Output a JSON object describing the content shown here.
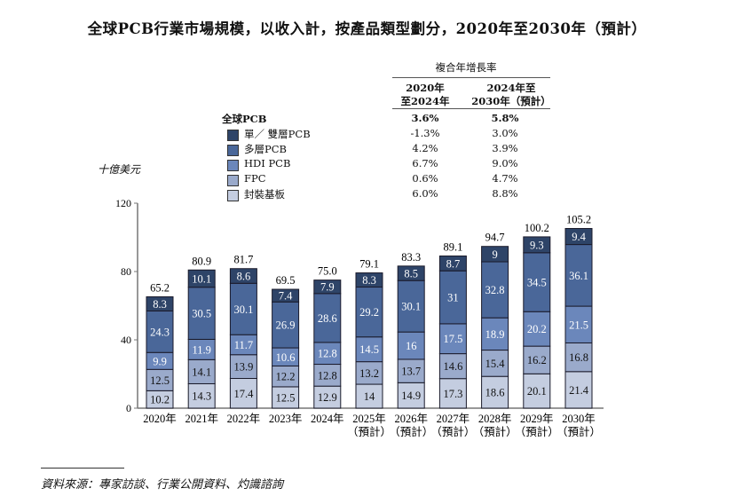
{
  "chart_data": {
    "type": "bar",
    "stacked": true,
    "title": "全球PCB行業市場規模，以收入計，按產品類型劃分，2020年至2030年（預計）",
    "ylabel": "十億美元",
    "xlabel": "",
    "ylim": [
      0,
      120
    ],
    "yticks": [
      0,
      40,
      80,
      120
    ],
    "grid": false,
    "categories": [
      "2020年",
      "2021年",
      "2022年",
      "2023年",
      "2024年",
      "2025年",
      "2026年",
      "2027年",
      "2028年",
      "2029年",
      "2030年"
    ],
    "category_sublabels": [
      "",
      "",
      "",
      "",
      "",
      "（預計）",
      "（預計）",
      "（預計）",
      "（預計）",
      "（預計）",
      "（預計）"
    ],
    "series": [
      {
        "name": "封裝基板",
        "color": "#c4cde0",
        "text_color": "#111111",
        "values": [
          10.2,
          14.3,
          17.4,
          12.5,
          12.9,
          14.0,
          14.9,
          17.3,
          18.6,
          20.1,
          21.4
        ]
      },
      {
        "name": "FPC",
        "color": "#9aaacb",
        "text_color": "#111111",
        "values": [
          12.5,
          14.1,
          13.9,
          12.2,
          12.8,
          13.2,
          13.7,
          14.6,
          15.4,
          16.2,
          16.8
        ]
      },
      {
        "name": "HDI PCB",
        "color": "#6b87bb",
        "text_color": "#ffffff",
        "values": [
          9.9,
          11.9,
          11.7,
          10.6,
          12.8,
          14.5,
          16.0,
          17.5,
          18.9,
          20.2,
          21.5
        ]
      },
      {
        "name": "多層PCB",
        "color": "#4a6799",
        "text_color": "#ffffff",
        "values": [
          24.3,
          30.5,
          30.1,
          26.9,
          28.6,
          29.2,
          30.1,
          31.0,
          32.8,
          34.5,
          36.1
        ]
      },
      {
        "name": "單／雙層PCB",
        "color": "#2e4468",
        "text_color": "#ffffff",
        "values": [
          8.3,
          10.1,
          8.6,
          7.4,
          7.9,
          8.3,
          8.5,
          8.7,
          9.0,
          9.3,
          9.4
        ]
      }
    ],
    "totals": [
      "65.2",
      "80.9",
      "81.7",
      "69.5",
      "75.0",
      "79.1",
      "83.3",
      "89.1",
      "94.7",
      "100.2",
      "105.2"
    ],
    "legend_placement": "top",
    "cagr_table": {
      "header": "複合年增長率",
      "col1": [
        "2020年",
        "至2024年"
      ],
      "col2": [
        "2024年至",
        "2030年（預計）"
      ],
      "rows": [
        {
          "label": "全球PCB",
          "v1": "3.6%",
          "v2": "5.8%",
          "bold": true
        },
        {
          "label": "單／ 雙層PCB",
          "v1": "-1.3%",
          "v2": "3.0%",
          "color": "#2e4468"
        },
        {
          "label": "多層PCB",
          "v1": "4.2%",
          "v2": "3.9%",
          "color": "#4a6799"
        },
        {
          "label": "HDI PCB",
          "v1": "6.7%",
          "v2": "9.0%",
          "color": "#6b87bb"
        },
        {
          "label": "FPC",
          "v1": "0.6%",
          "v2": "4.7%",
          "color": "#9aaacb"
        },
        {
          "label": "封裝基板",
          "v1": "6.0%",
          "v2": "8.8%",
          "color": "#c4cde0"
        }
      ]
    }
  },
  "source": "資料來源：專家訪談、行業公開資料、灼識諮詢"
}
